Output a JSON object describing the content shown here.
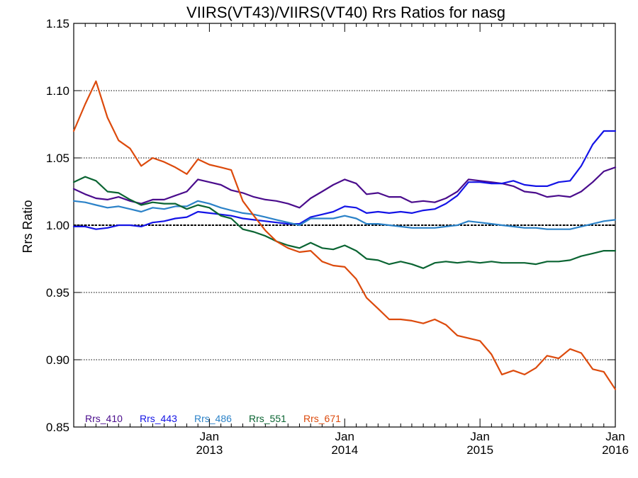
{
  "chart_data": {
    "type": "line",
    "title": "VIIRS(VT43)/VIIRS(VT40)  Rrs Ratios for nasg",
    "xlabel": "",
    "ylabel": "Rrs Ratio",
    "xlim": [
      "2012-01-01",
      "2016-01-01"
    ],
    "ylim": [
      0.85,
      1.15
    ],
    "yticks": [
      0.85,
      0.9,
      0.95,
      1.0,
      1.05,
      1.1,
      1.15
    ],
    "ytick_labels": [
      "0.85",
      "0.90",
      "0.95",
      "1.00",
      "1.05",
      "1.10",
      "1.15"
    ],
    "xticks": [
      {
        "date": "2013-01-01",
        "label_top": "Jan",
        "label_bottom": "2013"
      },
      {
        "date": "2014-01-01",
        "label_top": "Jan",
        "label_bottom": "2014"
      },
      {
        "date": "2015-01-01",
        "label_top": "Jan",
        "label_bottom": "2015"
      },
      {
        "date": "2016-01-01",
        "label_top": "Jan",
        "label_bottom": "2016"
      }
    ],
    "reference_line": 1.0,
    "legend_position": "bottom-left",
    "series": [
      {
        "name": "Rrs_410",
        "color": "#4a0c8c",
        "x": [
          "2012-01-01",
          "2012-02-01",
          "2012-03-01",
          "2012-04-01",
          "2012-05-01",
          "2012-06-01",
          "2012-07-01",
          "2012-08-01",
          "2012-09-01",
          "2012-10-01",
          "2012-11-01",
          "2012-12-01",
          "2013-01-01",
          "2013-02-01",
          "2013-03-01",
          "2013-04-01",
          "2013-05-01",
          "2013-06-01",
          "2013-07-01",
          "2013-08-01",
          "2013-09-01",
          "2013-10-01",
          "2013-11-01",
          "2013-12-01",
          "2014-01-01",
          "2014-02-01",
          "2014-03-01",
          "2014-04-01",
          "2014-05-01",
          "2014-06-01",
          "2014-07-01",
          "2014-08-01",
          "2014-09-01",
          "2014-10-01",
          "2014-11-01",
          "2014-12-01",
          "2015-01-01",
          "2015-02-01",
          "2015-03-01",
          "2015-04-01",
          "2015-05-01",
          "2015-06-01",
          "2015-07-01",
          "2015-08-01",
          "2015-09-01",
          "2015-10-01",
          "2015-11-01",
          "2015-12-01",
          "2016-01-01"
        ],
        "y": [
          1.027,
          1.023,
          1.02,
          1.019,
          1.021,
          1.018,
          1.016,
          1.019,
          1.019,
          1.022,
          1.025,
          1.034,
          1.032,
          1.03,
          1.026,
          1.024,
          1.021,
          1.019,
          1.018,
          1.016,
          1.013,
          1.02,
          1.025,
          1.03,
          1.034,
          1.031,
          1.023,
          1.024,
          1.021,
          1.021,
          1.017,
          1.018,
          1.017,
          1.02,
          1.025,
          1.034,
          1.033,
          1.032,
          1.031,
          1.029,
          1.025,
          1.024,
          1.021,
          1.022,
          1.021,
          1.025,
          1.032,
          1.04,
          1.043
        ]
      },
      {
        "name": "Rrs_443",
        "color": "#1414e6",
        "x": [
          "2012-01-01",
          "2012-02-01",
          "2012-03-01",
          "2012-04-01",
          "2012-05-01",
          "2012-06-01",
          "2012-07-01",
          "2012-08-01",
          "2012-09-01",
          "2012-10-01",
          "2012-11-01",
          "2012-12-01",
          "2013-01-01",
          "2013-02-01",
          "2013-03-01",
          "2013-04-01",
          "2013-05-01",
          "2013-06-01",
          "2013-07-01",
          "2013-08-01",
          "2013-09-01",
          "2013-10-01",
          "2013-11-01",
          "2013-12-01",
          "2014-01-01",
          "2014-02-01",
          "2014-03-01",
          "2014-04-01",
          "2014-05-01",
          "2014-06-01",
          "2014-07-01",
          "2014-08-01",
          "2014-09-01",
          "2014-10-01",
          "2014-11-01",
          "2014-12-01",
          "2015-01-01",
          "2015-02-01",
          "2015-03-01",
          "2015-04-01",
          "2015-05-01",
          "2015-06-01",
          "2015-07-01",
          "2015-08-01",
          "2015-09-01",
          "2015-10-01",
          "2015-11-01",
          "2015-12-01",
          "2016-01-01"
        ],
        "y": [
          0.999,
          0.999,
          0.997,
          0.998,
          1.0,
          1.0,
          0.999,
          1.002,
          1.003,
          1.005,
          1.006,
          1.01,
          1.009,
          1.008,
          1.007,
          1.005,
          1.004,
          1.003,
          1.002,
          1.001,
          1.001,
          1.006,
          1.008,
          1.01,
          1.014,
          1.013,
          1.009,
          1.01,
          1.009,
          1.01,
          1.009,
          1.011,
          1.012,
          1.016,
          1.022,
          1.032,
          1.032,
          1.031,
          1.031,
          1.033,
          1.03,
          1.029,
          1.029,
          1.032,
          1.033,
          1.044,
          1.06,
          1.07,
          1.07
        ]
      },
      {
        "name": "Rrs_486",
        "color": "#2b82c8",
        "x": [
          "2012-01-01",
          "2012-02-01",
          "2012-03-01",
          "2012-04-01",
          "2012-05-01",
          "2012-06-01",
          "2012-07-01",
          "2012-08-01",
          "2012-09-01",
          "2012-10-01",
          "2012-11-01",
          "2012-12-01",
          "2013-01-01",
          "2013-02-01",
          "2013-03-01",
          "2013-04-01",
          "2013-05-01",
          "2013-06-01",
          "2013-07-01",
          "2013-08-01",
          "2013-09-01",
          "2013-10-01",
          "2013-11-01",
          "2013-12-01",
          "2014-01-01",
          "2014-02-01",
          "2014-03-01",
          "2014-04-01",
          "2014-05-01",
          "2014-06-01",
          "2014-07-01",
          "2014-08-01",
          "2014-09-01",
          "2014-10-01",
          "2014-11-01",
          "2014-12-01",
          "2015-01-01",
          "2015-02-01",
          "2015-03-01",
          "2015-04-01",
          "2015-05-01",
          "2015-06-01",
          "2015-07-01",
          "2015-08-01",
          "2015-09-01",
          "2015-10-01",
          "2015-11-01",
          "2015-12-01",
          "2016-01-01"
        ],
        "y": [
          1.018,
          1.017,
          1.015,
          1.013,
          1.014,
          1.012,
          1.01,
          1.013,
          1.012,
          1.014,
          1.014,
          1.018,
          1.016,
          1.013,
          1.011,
          1.009,
          1.008,
          1.006,
          1.004,
          1.002,
          1.0,
          1.005,
          1.005,
          1.005,
          1.007,
          1.005,
          1.001,
          1.001,
          1.0,
          0.999,
          0.998,
          0.998,
          0.998,
          0.999,
          1.0,
          1.003,
          1.002,
          1.001,
          1.0,
          0.999,
          0.998,
          0.998,
          0.997,
          0.997,
          0.997,
          0.999,
          1.001,
          1.003,
          1.004
        ]
      },
      {
        "name": "Rrs_551",
        "color": "#0a6432",
        "x": [
          "2012-01-01",
          "2012-02-01",
          "2012-03-01",
          "2012-04-01",
          "2012-05-01",
          "2012-06-01",
          "2012-07-01",
          "2012-08-01",
          "2012-09-01",
          "2012-10-01",
          "2012-11-01",
          "2012-12-01",
          "2013-01-01",
          "2013-02-01",
          "2013-03-01",
          "2013-04-01",
          "2013-05-01",
          "2013-06-01",
          "2013-07-01",
          "2013-08-01",
          "2013-09-01",
          "2013-10-01",
          "2013-11-01",
          "2013-12-01",
          "2014-01-01",
          "2014-02-01",
          "2014-03-01",
          "2014-04-01",
          "2014-05-01",
          "2014-06-01",
          "2014-07-01",
          "2014-08-01",
          "2014-09-01",
          "2014-10-01",
          "2014-11-01",
          "2014-12-01",
          "2015-01-01",
          "2015-02-01",
          "2015-03-01",
          "2015-04-01",
          "2015-05-01",
          "2015-06-01",
          "2015-07-01",
          "2015-08-01",
          "2015-09-01",
          "2015-10-01",
          "2015-11-01",
          "2015-12-01",
          "2016-01-01"
        ],
        "y": [
          1.032,
          1.036,
          1.033,
          1.025,
          1.024,
          1.019,
          1.015,
          1.017,
          1.016,
          1.016,
          1.012,
          1.015,
          1.013,
          1.007,
          1.005,
          0.997,
          0.995,
          0.992,
          0.988,
          0.985,
          0.983,
          0.987,
          0.983,
          0.982,
          0.985,
          0.981,
          0.975,
          0.974,
          0.971,
          0.973,
          0.971,
          0.968,
          0.972,
          0.973,
          0.972,
          0.973,
          0.972,
          0.973,
          0.972,
          0.972,
          0.972,
          0.971,
          0.973,
          0.973,
          0.974,
          0.977,
          0.979,
          0.981,
          0.981
        ]
      },
      {
        "name": "Rrs_671",
        "color": "#dc4a0c",
        "x": [
          "2012-01-01",
          "2012-02-01",
          "2012-03-01",
          "2012-04-01",
          "2012-05-01",
          "2012-06-01",
          "2012-07-01",
          "2012-08-01",
          "2012-09-01",
          "2012-10-01",
          "2012-11-01",
          "2012-12-01",
          "2013-01-01",
          "2013-02-01",
          "2013-03-01",
          "2013-04-01",
          "2013-05-01",
          "2013-06-01",
          "2013-07-01",
          "2013-08-01",
          "2013-09-01",
          "2013-10-01",
          "2013-11-01",
          "2013-12-01",
          "2014-01-01",
          "2014-02-01",
          "2014-03-01",
          "2014-04-01",
          "2014-05-01",
          "2014-06-01",
          "2014-07-01",
          "2014-08-01",
          "2014-09-01",
          "2014-10-01",
          "2014-11-01",
          "2014-12-01",
          "2015-01-01",
          "2015-02-01",
          "2015-03-01",
          "2015-04-01",
          "2015-05-01",
          "2015-06-01",
          "2015-07-01",
          "2015-08-01",
          "2015-09-01",
          "2015-10-01",
          "2015-11-01",
          "2015-12-01",
          "2016-01-01"
        ],
        "y": [
          1.07,
          1.09,
          1.107,
          1.08,
          1.063,
          1.057,
          1.044,
          1.05,
          1.047,
          1.043,
          1.038,
          1.049,
          1.045,
          1.043,
          1.041,
          1.018,
          1.007,
          0.996,
          0.988,
          0.983,
          0.98,
          0.981,
          0.973,
          0.97,
          0.969,
          0.96,
          0.946,
          0.938,
          0.93,
          0.93,
          0.929,
          0.927,
          0.93,
          0.926,
          0.918,
          0.916,
          0.914,
          0.904,
          0.889,
          0.892,
          0.889,
          0.894,
          0.903,
          0.901,
          0.908,
          0.905,
          0.893,
          0.891,
          0.878
        ]
      }
    ]
  }
}
